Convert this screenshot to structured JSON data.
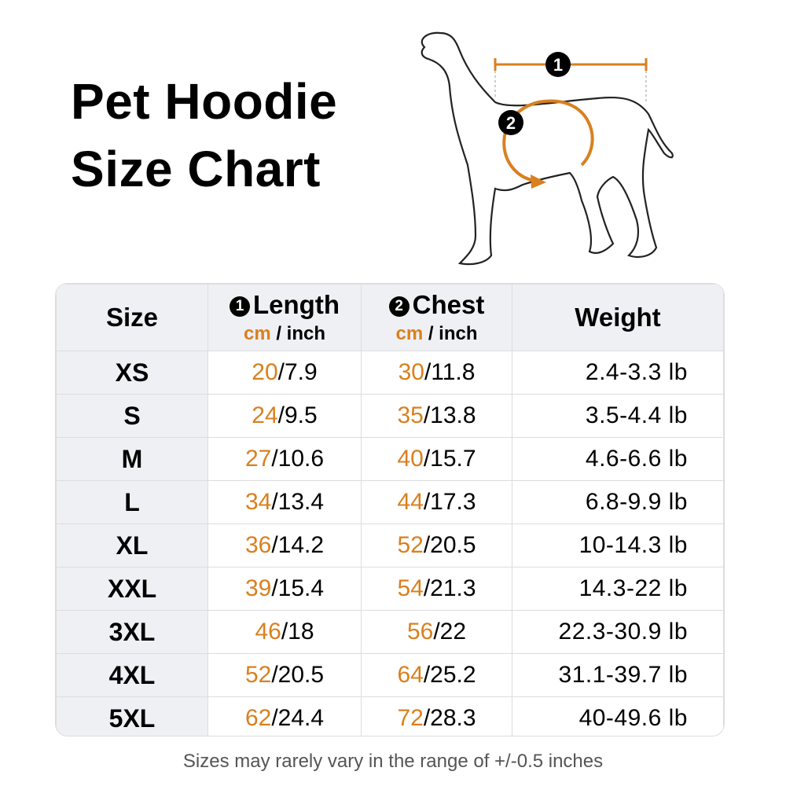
{
  "title": [
    "Pet Hoodie",
    "Size Chart"
  ],
  "diagram": {
    "markers": [
      "1",
      "2"
    ],
    "accent": "#d9801f"
  },
  "table": {
    "headers": {
      "size": "Size",
      "length": {
        "num": "1",
        "label": "Length",
        "unit_cm": "cm",
        "unit_inch": "/ inch"
      },
      "chest": {
        "num": "2",
        "label": "Chest",
        "unit_cm": "cm",
        "unit_inch": "/ inch"
      },
      "weight": "Weight"
    },
    "rows": [
      {
        "size": "XS",
        "len_cm": "20",
        "len_in": "/7.9",
        "chest_cm": "30",
        "chest_in": "/11.8",
        "weight": "2.4-3.3 lb"
      },
      {
        "size": "S",
        "len_cm": "24",
        "len_in": "/9.5",
        "chest_cm": "35",
        "chest_in": "/13.8",
        "weight": "3.5-4.4 lb"
      },
      {
        "size": "M",
        "len_cm": "27",
        "len_in": "/10.6",
        "chest_cm": "40",
        "chest_in": "/15.7",
        "weight": "4.6-6.6 lb"
      },
      {
        "size": "L",
        "len_cm": "34",
        "len_in": "/13.4",
        "chest_cm": "44",
        "chest_in": "/17.3",
        "weight": "6.8-9.9 lb"
      },
      {
        "size": "XL",
        "len_cm": "36",
        "len_in": "/14.2",
        "chest_cm": "52",
        "chest_in": "/20.5",
        "weight": "10-14.3 lb"
      },
      {
        "size": "XXL",
        "len_cm": "39",
        "len_in": "/15.4",
        "chest_cm": "54",
        "chest_in": "/21.3",
        "weight": "14.3-22 lb"
      },
      {
        "size": "3XL",
        "len_cm": "46",
        "len_in": "/18",
        "chest_cm": "56",
        "chest_in": "/22",
        "weight": "22.3-30.9 lb"
      },
      {
        "size": "4XL",
        "len_cm": "52",
        "len_in": "/20.5",
        "chest_cm": "64",
        "chest_in": "/25.2",
        "weight": "31.1-39.7 lb"
      },
      {
        "size": "5XL",
        "len_cm": "62",
        "len_in": "/24.4",
        "chest_cm": "72",
        "chest_in": "/28.3",
        "weight": "40-49.6 lb"
      }
    ]
  },
  "note": "Sizes may rarely vary in the range of +/-0.5 inches"
}
